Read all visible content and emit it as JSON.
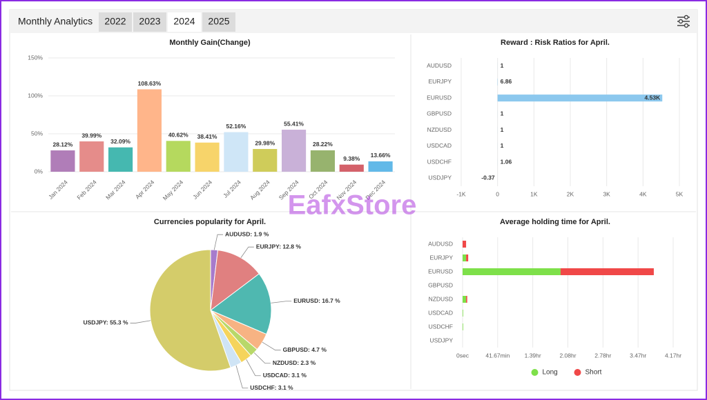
{
  "header": {
    "title": "Monthly Analytics",
    "tabs": [
      "2022",
      "2023",
      "2024",
      "2025"
    ],
    "active_tab": 2
  },
  "watermark": "EafxStore",
  "chart_data": [
    {
      "type": "bar",
      "title": "Monthly Gain(Change)",
      "categories": [
        "Jan 2024",
        "Feb 2024",
        "Mar 2024",
        "Apr 2024",
        "May 2024",
        "Jun 2024",
        "Jul 2024",
        "Aug 2024",
        "Sep 2024",
        "Oct 2024",
        "Nov 2024",
        "Dec 2024"
      ],
      "values": [
        28.12,
        39.99,
        32.09,
        108.63,
        40.62,
        38.41,
        52.16,
        29.98,
        55.41,
        28.22,
        9.38,
        13.66
      ],
      "value_labels": [
        "28.12%",
        "39.99%",
        "32.09%",
        "108.63%",
        "40.62%",
        "38.41%",
        "52.16%",
        "29.98%",
        "55.41%",
        "28.22%",
        "9.38%",
        "13.66%"
      ],
      "colors": [
        "#b07db8",
        "#e58c8a",
        "#45b8b0",
        "#ffb58a",
        "#b5d95e",
        "#f7d46a",
        "#cfe6f7",
        "#cfcc5a",
        "#c9b1d8",
        "#97b36e",
        "#d4616a",
        "#62b9e8"
      ],
      "ylim": [
        0,
        150
      ],
      "yticks": [
        {
          "value": 0,
          "label": "0%"
        },
        {
          "value": 50,
          "label": "50%"
        },
        {
          "value": 100,
          "label": "100%"
        },
        {
          "value": 150,
          "label": "150%"
        }
      ],
      "grid": true
    },
    {
      "type": "barh",
      "title": "Reward : Risk Ratios for April.",
      "categories": [
        "AUDUSD",
        "EURJPY",
        "EURUSD",
        "GBPUSD",
        "NZDUSD",
        "USDCAD",
        "USDCHF",
        "USDJPY"
      ],
      "values": [
        1,
        6.86,
        4530,
        1,
        1,
        1,
        1.06,
        -0.37
      ],
      "value_labels": [
        "1",
        "6.86",
        "4.53K",
        "1",
        "1",
        "1",
        "1.06",
        "-0.37"
      ],
      "color": "#8cc8ee",
      "xlim": [
        -1000,
        5000
      ],
      "xticks": [
        {
          "value": -1000,
          "label": "-1K"
        },
        0,
        {
          "value": 1000,
          "label": "1K"
        },
        {
          "value": 2000,
          "label": "2K"
        },
        {
          "value": 3000,
          "label": "3K"
        },
        {
          "value": 4000,
          "label": "4K"
        },
        {
          "value": 5000,
          "label": "5K"
        }
      ],
      "grid": true
    },
    {
      "type": "pie",
      "title": "Currencies popularity for April.",
      "values": [
        1.9,
        12.8,
        16.7,
        4.7,
        2.3,
        3.1,
        3.1,
        55.3
      ],
      "value_labels": [
        "AUDUSD: 1.9 %",
        "EURJPY: 12.8 %",
        "EURUSD: 16.7 %",
        "GBPUSD: 4.7 %",
        "NZDUSD: 2.3 %",
        "USDCAD: 3.1 %",
        "USDCHF: 3.1 %",
        "USDJPY: 55.3 %"
      ],
      "colors": [
        "#a77bcc",
        "#e08080",
        "#4fb8b0",
        "#f7b383",
        "#b8d86a",
        "#f5d45c",
        "#cfe4f5",
        "#d4cc6a"
      ]
    },
    {
      "type": "barh",
      "title": "Average holding time for April.",
      "categories": [
        "AUDUSD",
        "EURJPY",
        "EURUSD",
        "GBPUSD",
        "NZDUSD",
        "USDCAD",
        "USDCHF",
        "USDJPY"
      ],
      "series": [
        {
          "name": "Long",
          "color": "#7ee04a",
          "values": [
            0,
            250,
            6980,
            0,
            250,
            40,
            40,
            0
          ]
        },
        {
          "name": "Short",
          "color": "#f04848",
          "values": [
            250,
            150,
            6640,
            0,
            80,
            0,
            0,
            0
          ]
        }
      ],
      "stacked": true,
      "xlim": [
        0,
        15000
      ],
      "xticks": [
        {
          "value": 0,
          "label": "0sec"
        },
        {
          "value": 2500,
          "label": "41.67min"
        },
        {
          "value": 5000,
          "label": "1.39hr"
        },
        {
          "value": 7500,
          "label": "2.08hr"
        },
        {
          "value": 10000,
          "label": "2.78hr"
        },
        {
          "value": 12500,
          "label": "3.47hr"
        },
        {
          "value": 15000,
          "label": "4.17hr"
        }
      ],
      "grid": true,
      "legend": "bottom"
    }
  ]
}
